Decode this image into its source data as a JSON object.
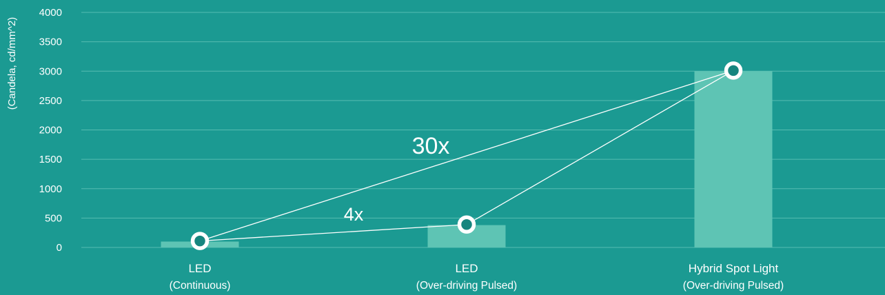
{
  "chart_data": {
    "type": "bar",
    "ylabel": "(Candela, cd/mm^2)",
    "ylim": [
      0,
      4000
    ],
    "yticks": [
      0,
      500,
      1000,
      1500,
      2000,
      2500,
      3000,
      3500,
      4000
    ],
    "grid": true,
    "categories": [
      {
        "name": "LED",
        "detail": "(Continuous)"
      },
      {
        "name": "LED",
        "detail": "(Over-driving Pulsed)"
      },
      {
        "name": "Hybrid Spot Light",
        "detail": "(Over-driving Pulsed)"
      }
    ],
    "values": [
      100,
      380,
      3000
    ],
    "markers": [
      110,
      390,
      3010
    ],
    "connections": [
      {
        "from": 0,
        "to": 1
      },
      {
        "from": 1,
        "to": 2
      },
      {
        "from": 0,
        "to": 2
      }
    ],
    "annotations": [
      {
        "text": "30x"
      },
      {
        "text": "4x"
      }
    ]
  },
  "colors": {
    "background": "#1b9a92",
    "bar": "#5ec4b4",
    "grid": "#56bcb1",
    "text": "#ffffff",
    "marker_fill": "#16857e"
  }
}
